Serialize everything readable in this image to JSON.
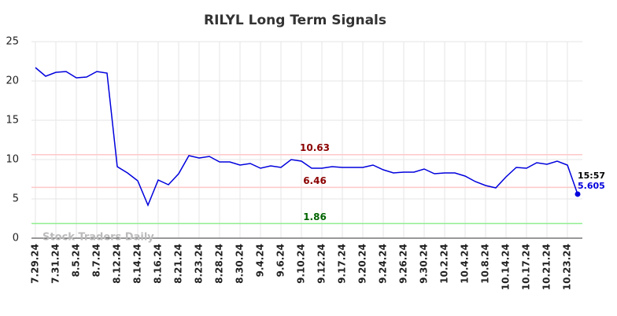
{
  "chart_data": {
    "type": "line",
    "title": "RILYL Long Term Signals",
    "categories": [
      "7.29.24",
      null,
      "7.31.24",
      null,
      "8.5.24",
      null,
      "8.7.24",
      null,
      "8.12.24",
      null,
      "8.14.24",
      null,
      "8.16.24",
      null,
      "8.21.24",
      null,
      "8.23.24",
      null,
      "8.28.24",
      null,
      "8.30.24",
      null,
      "9.4.24",
      null,
      "9.6.24",
      null,
      "9.10.24",
      null,
      "9.12.24",
      null,
      "9.17.24",
      null,
      "9.20.24",
      null,
      "9.24.24",
      null,
      "9.26.24",
      null,
      "9.30.24",
      null,
      "10.2.24",
      null,
      "10.4.24",
      null,
      "10.8.24",
      null,
      "10.14.24",
      null,
      "10.17.24",
      null,
      "10.21.24",
      null,
      "10.23.24",
      null
    ],
    "values": [
      21.7,
      20.6,
      21.1,
      21.2,
      20.4,
      20.5,
      21.2,
      21.0,
      9.1,
      8.3,
      7.3,
      4.2,
      7.4,
      6.8,
      8.2,
      10.5,
      10.2,
      10.4,
      9.7,
      9.7,
      9.3,
      9.5,
      8.9,
      9.2,
      9.0,
      10.0,
      9.8,
      8.9,
      8.9,
      9.1,
      9.0,
      9.0,
      9.0,
      9.3,
      8.7,
      8.3,
      8.4,
      8.4,
      8.8,
      8.2,
      8.3,
      8.3,
      7.9,
      7.2,
      6.7,
      6.4,
      7.8,
      9.0,
      8.9,
      9.6,
      9.4,
      9.8,
      9.3,
      5.605
    ],
    "color": "#0000dd",
    "ylim": [
      0,
      25
    ],
    "yticks": [
      0,
      5,
      10,
      15,
      20,
      25
    ],
    "grid": true,
    "hlines": [
      {
        "value": 10.63,
        "color": "#ffc8c8",
        "label_color": "#8b0000"
      },
      {
        "value": 6.46,
        "color": "#ffc8c8",
        "label_color": "#8b0000"
      },
      {
        "value": 1.86,
        "color": "#90ee90",
        "label_color": "#006400"
      }
    ],
    "last_time_label": "15:57",
    "watermark": "Stock Traders Daily"
  }
}
